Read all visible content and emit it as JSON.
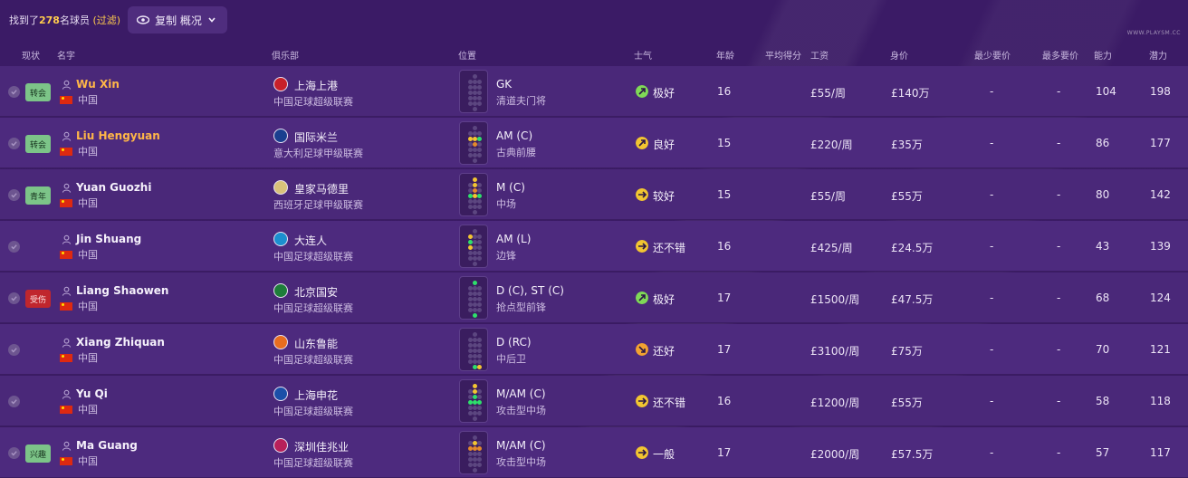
{
  "topbar": {
    "found_prefix": "找到了",
    "found_count": "278",
    "found_suffix": "名球员",
    "filter": "(过滤)",
    "view_label": "复制 概况"
  },
  "headers": {
    "status": "现状",
    "name": "名字",
    "club": "俱乐部",
    "position": "位置",
    "morale": "士气",
    "age": "年龄",
    "avg_rating": "平均得分",
    "wage": "工资",
    "value": "身价",
    "min_fee": "最少要价",
    "max_fee": "最多要价",
    "ability": "能力",
    "potential": "潜力"
  },
  "colors": {
    "background": "#3a1a63",
    "row": "#4a2879",
    "highlight_name": "#ffb648",
    "found_count": "#ffcc4d",
    "morale_very_good": "#7fd957",
    "morale_good": "#f2c531",
    "morale_ok": "#f2a231",
    "injury_tag": "#c0262d",
    "status_tag": "#7cc488"
  },
  "players": [
    {
      "tag": "转会",
      "tag_color": "green",
      "name": "Wu Xin",
      "highlight": true,
      "nation": "中国",
      "club": "上海上港",
      "club_badge": "#c8202a",
      "league": "中国足球超级联赛",
      "position": "GK",
      "role": "清道夫门将",
      "morale_icon": "arrow-up-right-icon",
      "morale_color": "#7fd957",
      "morale": "极好",
      "age": "16",
      "wage": "£55/周",
      "value": "£140万",
      "min": "-",
      "max": "-",
      "ca": "104",
      "pa": "198",
      "pitch": [
        [
          2,
          8,
          "g"
        ]
      ]
    },
    {
      "tag": "转会",
      "tag_color": "green",
      "name": "Liu Hengyuan",
      "highlight": true,
      "nation": "中国",
      "club": "国际米兰",
      "club_badge": "#1a3f8f",
      "league": "意大利足球甲级联赛",
      "position": "AM (C)",
      "role": "古典前腰",
      "morale_icon": "arrow-up-right-icon",
      "morale_color": "#f2c531",
      "morale": "良好",
      "age": "15",
      "wage": "£220/周",
      "value": "£35万",
      "min": "-",
      "max": "-",
      "ca": "86",
      "pa": "177",
      "pitch": [
        [
          2,
          2,
          "y"
        ],
        [
          1,
          2,
          "y"
        ],
        [
          3,
          2,
          "g"
        ],
        [
          2,
          3,
          "o"
        ]
      ]
    },
    {
      "tag": "青年",
      "tag_color": "green",
      "name": "Yuan Guozhi",
      "highlight": false,
      "nation": "中国",
      "club": "皇家马德里",
      "club_badge": "#d9c27a",
      "league": "西班牙足球甲级联赛",
      "position": "M (C)",
      "role": "中场",
      "morale_icon": "arrow-right-icon",
      "morale_color": "#f2c531",
      "morale": "较好",
      "age": "15",
      "wage": "£55/周",
      "value": "£55万",
      "min": "-",
      "max": "-",
      "ca": "80",
      "pa": "142",
      "pitch": [
        [
          2,
          0,
          "y"
        ],
        [
          2,
          1,
          "y"
        ],
        [
          2,
          2,
          "o"
        ],
        [
          1,
          3,
          "g"
        ],
        [
          2,
          3,
          "y"
        ],
        [
          3,
          3,
          "g"
        ]
      ]
    },
    {
      "tag": "",
      "tag_color": "",
      "name": "Jin Shuang",
      "highlight": false,
      "nation": "中国",
      "club": "大连人",
      "club_badge": "#1c8fcf",
      "league": "中国足球超级联赛",
      "position": "AM (L)",
      "role": "边锋",
      "morale_icon": "arrow-right-icon",
      "morale_color": "#f2c531",
      "morale": "还不错",
      "age": "16",
      "wage": "£425/周",
      "value": "£24.5万",
      "min": "-",
      "max": "-",
      "ca": "43",
      "pa": "139",
      "pitch": [
        [
          1,
          2,
          "g"
        ],
        [
          1,
          1,
          "y"
        ],
        [
          1,
          3,
          "y"
        ]
      ]
    },
    {
      "tag": "受伤",
      "tag_color": "red",
      "name": "Liang Shaowen",
      "highlight": false,
      "nation": "中国",
      "club": "北京国安",
      "club_badge": "#1e7d3a",
      "league": "中国足球超级联赛",
      "position": "D (C), ST (C)",
      "role": "抢点型前锋",
      "morale_icon": "arrow-up-right-icon",
      "morale_color": "#7fd957",
      "morale": "极好",
      "age": "17",
      "wage": "£1500/周",
      "value": "£47.5万",
      "min": "-",
      "max": "-",
      "ca": "68",
      "pa": "124",
      "pitch": [
        [
          2,
          0,
          "g"
        ],
        [
          2,
          6,
          "g"
        ]
      ]
    },
    {
      "tag": "",
      "tag_color": "",
      "name": "Xiang Zhiquan",
      "highlight": false,
      "nation": "中国",
      "club": "山东鲁能",
      "club_badge": "#e86d1f",
      "league": "中国足球超级联赛",
      "position": "D (RC)",
      "role": "中后卫",
      "morale_icon": "arrow-down-right-icon",
      "morale_color": "#f2a231",
      "morale": "还好",
      "age": "17",
      "wage": "£3100/周",
      "value": "£75万",
      "min": "-",
      "max": "-",
      "ca": "70",
      "pa": "121",
      "pitch": [
        [
          2,
          6,
          "g"
        ],
        [
          3,
          6,
          "y"
        ]
      ]
    },
    {
      "tag": "",
      "tag_color": "",
      "name": "Yu Qi",
      "highlight": false,
      "nation": "中国",
      "club": "上海申花",
      "club_badge": "#1b4fa8",
      "league": "中国足球超级联赛",
      "position": "M/AM (C)",
      "role": "攻击型中场",
      "morale_icon": "arrow-right-icon",
      "morale_color": "#f2c531",
      "morale": "还不错",
      "age": "16",
      "wage": "£1200/周",
      "value": "£55万",
      "min": "-",
      "max": "-",
      "ca": "58",
      "pa": "118",
      "pitch": [
        [
          2,
          0,
          "y"
        ],
        [
          2,
          1,
          "y"
        ],
        [
          2,
          2,
          "g"
        ],
        [
          1,
          3,
          "g"
        ],
        [
          2,
          3,
          "g"
        ],
        [
          3,
          3,
          "g"
        ]
      ]
    },
    {
      "tag": "兴趣",
      "tag_color": "green",
      "name": "Ma Guang",
      "highlight": false,
      "nation": "中国",
      "club": "深圳佳兆业",
      "club_badge": "#b8205a",
      "league": "中国足球超级联赛",
      "position": "M/AM (C)",
      "role": "攻击型中场",
      "morale_icon": "arrow-right-icon",
      "morale_color": "#f2c531",
      "morale": "一般",
      "age": "17",
      "wage": "£2000/周",
      "value": "£57.5万",
      "min": "-",
      "max": "-",
      "ca": "57",
      "pa": "117",
      "pitch": [
        [
          2,
          1,
          "y"
        ],
        [
          1,
          2,
          "o"
        ],
        [
          2,
          2,
          "o"
        ],
        [
          3,
          2,
          "o"
        ]
      ]
    }
  ],
  "watermark": "WWW.PLAYSM.CC"
}
